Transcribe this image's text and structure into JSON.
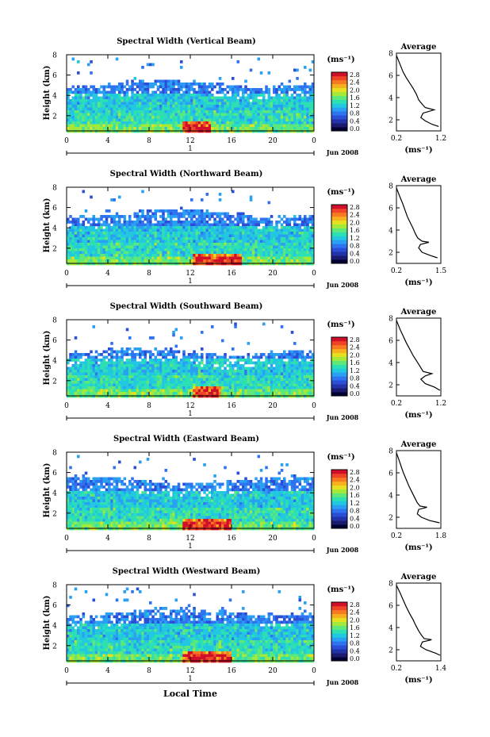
{
  "figure": {
    "xlabel": "Local Time",
    "date_label": "Jun 2008"
  },
  "colorscale": {
    "unit": "(ms⁻¹)",
    "ticks": [
      "2.8",
      "2.4",
      "2.0",
      "1.6",
      "1.2",
      "0.8",
      "0.4",
      "0.0"
    ],
    "colors": [
      "#000033",
      "#1a1a6e",
      "#2233aa",
      "#2a4fd6",
      "#2f73f0",
      "#29a0f2",
      "#22c8e0",
      "#2ce0b4",
      "#5ee87a",
      "#a4e83a",
      "#e6e020",
      "#f7b01e",
      "#f77a22",
      "#f04428",
      "#d0102a"
    ]
  },
  "chart_data": [
    {
      "type": "heatmap",
      "title": "Spectral Width (Vertical Beam)",
      "xlabel": "",
      "ylabel": "Height (km)",
      "x_ticks": [
        "0",
        "4",
        "8",
        "12",
        "16",
        "20",
        "0"
      ],
      "x_day_tick": "1",
      "y_ticks": [
        "8",
        "6",
        "4",
        "2"
      ],
      "xlim": [
        0,
        24
      ],
      "ylim": [
        0.5,
        8
      ],
      "seed": 11,
      "top": 5.3,
      "gap": [
        9,
        14,
        5.6,
        7.2
      ],
      "hotspot": [
        11,
        14
      ],
      "profile": {
        "title": "Average",
        "xlabel": "(ms⁻¹)",
        "x_ticks": [
          "0.2",
          "1.2"
        ],
        "y_ticks": [
          "8",
          "6",
          "4",
          "2"
        ],
        "xlim": [
          0.2,
          1.2
        ],
        "ylim": [
          1,
          8
        ],
        "points": [
          [
            0.2,
            7.8
          ],
          [
            0.25,
            7.3
          ],
          [
            0.3,
            6.8
          ],
          [
            0.35,
            6.3
          ],
          [
            0.42,
            5.8
          ],
          [
            0.5,
            5.3
          ],
          [
            0.58,
            4.8
          ],
          [
            0.65,
            4.3
          ],
          [
            0.7,
            3.8
          ],
          [
            0.78,
            3.4
          ],
          [
            0.85,
            3.1
          ],
          [
            1.05,
            2.9
          ],
          [
            0.8,
            2.6
          ],
          [
            0.75,
            2.2
          ],
          [
            0.85,
            1.9
          ],
          [
            1.0,
            1.6
          ],
          [
            1.15,
            1.4
          ]
        ]
      }
    },
    {
      "type": "heatmap",
      "title": "Spectral Width (Northward Beam)",
      "xlabel": "",
      "ylabel": "Height (km)",
      "x_ticks": [
        "0",
        "4",
        "8",
        "12",
        "16",
        "20",
        "0"
      ],
      "x_day_tick": "1",
      "y_ticks": [
        "8",
        "6",
        "4",
        "2"
      ],
      "xlim": [
        0,
        24
      ],
      "ylim": [
        0.5,
        8
      ],
      "seed": 23,
      "top": 5.6,
      "gap": null,
      "hotspot": [
        12,
        17
      ],
      "profile": {
        "title": "Average",
        "xlabel": "(ms⁻¹)",
        "x_ticks": [
          "0.2",
          "1.5"
        ],
        "y_ticks": [
          "8",
          "6",
          "4",
          "2"
        ],
        "xlim": [
          0.2,
          1.5
        ],
        "ylim": [
          1,
          8
        ],
        "points": [
          [
            0.2,
            7.8
          ],
          [
            0.3,
            7.0
          ],
          [
            0.38,
            6.4
          ],
          [
            0.45,
            5.8
          ],
          [
            0.52,
            5.2
          ],
          [
            0.6,
            4.7
          ],
          [
            0.68,
            4.2
          ],
          [
            0.75,
            3.7
          ],
          [
            0.82,
            3.3
          ],
          [
            0.95,
            3.0
          ],
          [
            1.15,
            2.9
          ],
          [
            0.9,
            2.7
          ],
          [
            0.85,
            2.4
          ],
          [
            0.95,
            2.0
          ],
          [
            1.2,
            1.7
          ],
          [
            1.4,
            1.5
          ]
        ]
      }
    },
    {
      "type": "heatmap",
      "title": "Spectral Width (Southward Beam)",
      "xlabel": "",
      "ylabel": "Height (km)",
      "x_ticks": [
        "0",
        "4",
        "8",
        "12",
        "16",
        "20",
        "0"
      ],
      "x_day_tick": "1",
      "y_ticks": [
        "8",
        "6",
        "4",
        "2"
      ],
      "xlim": [
        0,
        24
      ],
      "ylim": [
        0.5,
        8
      ],
      "seed": 37,
      "top": 5.0,
      "gap": null,
      "hotspot": [
        12,
        15
      ],
      "profile": {
        "title": "Average",
        "xlabel": "(ms⁻¹)",
        "x_ticks": [
          "0.2",
          "1.2"
        ],
        "y_ticks": [
          "8",
          "6",
          "4",
          "2"
        ],
        "xlim": [
          0.2,
          1.2
        ],
        "ylim": [
          1,
          8
        ],
        "points": [
          [
            0.2,
            7.8
          ],
          [
            0.28,
            7.0
          ],
          [
            0.35,
            6.4
          ],
          [
            0.42,
            5.8
          ],
          [
            0.5,
            5.2
          ],
          [
            0.58,
            4.6
          ],
          [
            0.66,
            4.1
          ],
          [
            0.74,
            3.6
          ],
          [
            0.8,
            3.2
          ],
          [
            1.0,
            3.0
          ],
          [
            0.85,
            2.8
          ],
          [
            0.75,
            2.5
          ],
          [
            0.85,
            2.1
          ],
          [
            1.05,
            1.8
          ],
          [
            1.18,
            1.5
          ]
        ]
      }
    },
    {
      "type": "heatmap",
      "title": "Spectral Width (Eastward Beam)",
      "xlabel": "",
      "ylabel": "Height (km)",
      "x_ticks": [
        "0",
        "4",
        "8",
        "12",
        "16",
        "20",
        "0"
      ],
      "x_day_tick": "1",
      "y_ticks": [
        "8",
        "6",
        "4",
        "2"
      ],
      "xlim": [
        0,
        24
      ],
      "ylim": [
        0.5,
        8
      ],
      "seed": 51,
      "top": 5.4,
      "gap": null,
      "hotspot": [
        11,
        16
      ],
      "profile": {
        "title": "Average",
        "xlabel": "(ms⁻¹)",
        "x_ticks": [
          "0.2",
          "1.8"
        ],
        "y_ticks": [
          "8",
          "6",
          "4",
          "2"
        ],
        "xlim": [
          0.2,
          1.8
        ],
        "ylim": [
          1,
          8
        ],
        "points": [
          [
            0.2,
            7.8
          ],
          [
            0.3,
            7.1
          ],
          [
            0.38,
            6.5
          ],
          [
            0.45,
            6.0
          ],
          [
            0.55,
            5.4
          ],
          [
            0.65,
            4.8
          ],
          [
            0.75,
            4.3
          ],
          [
            0.85,
            3.8
          ],
          [
            0.95,
            3.3
          ],
          [
            1.05,
            3.0
          ],
          [
            1.3,
            2.9
          ],
          [
            1.0,
            2.7
          ],
          [
            0.95,
            2.3
          ],
          [
            1.1,
            2.0
          ],
          [
            1.4,
            1.7
          ],
          [
            1.75,
            1.5
          ]
        ]
      }
    },
    {
      "type": "heatmap",
      "title": "Spectral Width (Westward Beam)",
      "xlabel": "",
      "ylabel": "Height (km)",
      "x_ticks": [
        "0",
        "4",
        "8",
        "12",
        "16",
        "20",
        "0"
      ],
      "x_day_tick": "1",
      "y_ticks": [
        "8",
        "6",
        "4",
        "2"
      ],
      "xlim": [
        0,
        24
      ],
      "ylim": [
        0.5,
        8
      ],
      "seed": 67,
      "top": 5.5,
      "gap": null,
      "hotspot": [
        11,
        16
      ],
      "profile": {
        "title": "Average",
        "xlabel": "(ms⁻¹)",
        "x_ticks": [
          "0.2",
          "1.4"
        ],
        "y_ticks": [
          "8",
          "6",
          "4",
          "2"
        ],
        "xlim": [
          0.2,
          1.4
        ],
        "ylim": [
          1,
          8
        ],
        "points": [
          [
            0.2,
            7.8
          ],
          [
            0.3,
            7.1
          ],
          [
            0.38,
            6.5
          ],
          [
            0.46,
            5.9
          ],
          [
            0.55,
            5.3
          ],
          [
            0.65,
            4.7
          ],
          [
            0.72,
            4.2
          ],
          [
            0.8,
            3.7
          ],
          [
            0.88,
            3.3
          ],
          [
            0.95,
            3.0
          ],
          [
            1.15,
            2.9
          ],
          [
            0.9,
            2.7
          ],
          [
            0.85,
            2.3
          ],
          [
            1.0,
            2.0
          ],
          [
            1.25,
            1.7
          ],
          [
            1.38,
            1.5
          ]
        ]
      }
    }
  ]
}
